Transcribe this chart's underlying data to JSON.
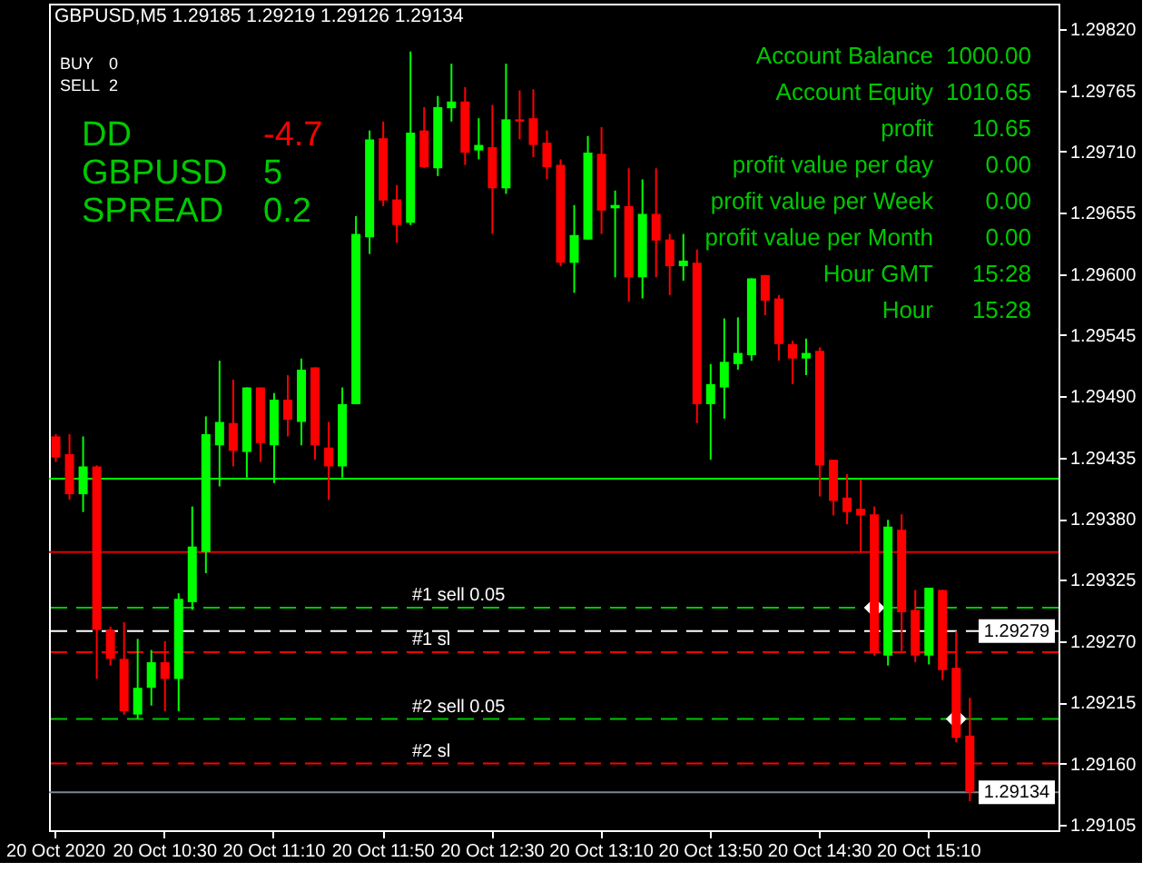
{
  "chart_data": {
    "type": "candlestick",
    "title": "GBPUSD,M5 1.29185 1.29219 1.29126 1.29134",
    "categories": [
      "20 Oct 2020",
      null,
      null,
      null,
      null,
      null,
      null,
      null,
      "20 Oct 10:30",
      null,
      null,
      null,
      null,
      null,
      null,
      null,
      "20 Oct 11:10",
      null,
      null,
      null,
      null,
      null,
      null,
      null,
      "20 Oct 11:50",
      null,
      null,
      null,
      null,
      null,
      null,
      null,
      "20 Oct 12:30",
      null,
      null,
      null,
      null,
      null,
      null,
      null,
      "20 Oct 13:10",
      null,
      null,
      null,
      null,
      null,
      null,
      null,
      "20 Oct 13:50",
      null,
      null,
      null,
      null,
      null,
      null,
      null,
      "20 Oct 14:30",
      null,
      null,
      null,
      null,
      null,
      null,
      null,
      "20 Oct 15:10",
      null,
      null,
      null,
      null,
      null,
      null,
      null,
      null,
      null
    ],
    "ohlc": [
      [
        1.29454,
        1.29456,
        1.29431,
        1.29435
      ],
      [
        1.29438,
        1.29456,
        1.29397,
        1.29402
      ],
      [
        1.29402,
        1.29454,
        1.29386,
        1.29427
      ],
      [
        1.29427,
        1.29428,
        1.29236,
        1.2928
      ],
      [
        1.2928,
        1.29283,
        1.29248,
        1.29254
      ],
      [
        1.29254,
        1.29287,
        1.29204,
        1.29207
      ],
      [
        1.29204,
        1.29272,
        1.292,
        1.29228
      ],
      [
        1.29228,
        1.29262,
        1.29212,
        1.29251
      ],
      [
        1.29251,
        1.2927,
        1.29207,
        1.29236
      ],
      [
        1.29236,
        1.29313,
        1.29207,
        1.29308
      ],
      [
        1.29305,
        1.29391,
        1.29298,
        1.29355
      ],
      [
        1.2935,
        1.29472,
        1.29331,
        1.29456
      ],
      [
        1.29446,
        1.29522,
        1.29409,
        1.29467
      ],
      [
        1.29466,
        1.29505,
        1.29427,
        1.29441
      ],
      [
        1.2944,
        1.29498,
        1.29417,
        1.29498
      ],
      [
        1.29498,
        1.29498,
        1.29431,
        1.29448
      ],
      [
        1.29446,
        1.29493,
        1.29412,
        1.29487
      ],
      [
        1.29487,
        1.29509,
        1.29454,
        1.29469
      ],
      [
        1.29467,
        1.29524,
        1.29446,
        1.29514
      ],
      [
        1.29516,
        1.29516,
        1.29433,
        1.29446
      ],
      [
        1.29444,
        1.29467,
        1.29397,
        1.29427
      ],
      [
        1.29427,
        1.29498,
        1.29417,
        1.29483
      ],
      [
        1.29483,
        1.29652,
        1.29483,
        1.29636
      ],
      [
        1.29633,
        1.29729,
        1.29618,
        1.29721
      ],
      [
        1.29722,
        1.29737,
        1.29661,
        1.29666
      ],
      [
        1.29667,
        1.2968,
        1.29628,
        1.29644
      ],
      [
        1.29646,
        1.298,
        1.29644,
        1.29727
      ],
      [
        1.29729,
        1.2975,
        1.29695,
        1.29696
      ],
      [
        1.29695,
        1.2976,
        1.29688,
        1.2975
      ],
      [
        1.29749,
        1.29789,
        1.29737,
        1.29755
      ],
      [
        1.29755,
        1.29768,
        1.29698,
        1.29709
      ],
      [
        1.29711,
        1.2974,
        1.29703,
        1.29716
      ],
      [
        1.29714,
        1.29752,
        1.29636,
        1.29677
      ],
      [
        1.29677,
        1.29789,
        1.29672,
        1.29739
      ],
      [
        1.29739,
        1.29765,
        1.29721,
        1.29737
      ],
      [
        1.2974,
        1.29766,
        1.29705,
        1.29716
      ],
      [
        1.29718,
        1.29729,
        1.29685,
        1.29696
      ],
      [
        1.29698,
        1.29703,
        1.29607,
        1.2961
      ],
      [
        1.2961,
        1.29662,
        1.29583,
        1.29635
      ],
      [
        1.29631,
        1.29724,
        1.29631,
        1.29709
      ],
      [
        1.29708,
        1.29732,
        1.29636,
        1.29657
      ],
      [
        1.29659,
        1.29675,
        1.29597,
        1.29662
      ],
      [
        1.29661,
        1.29695,
        1.29575,
        1.29597
      ],
      [
        1.29597,
        1.29685,
        1.29578,
        1.29654
      ],
      [
        1.29654,
        1.29695,
        1.29597,
        1.2963
      ],
      [
        1.29631,
        1.29636,
        1.29581,
        1.29607
      ],
      [
        1.29607,
        1.29636,
        1.29594,
        1.29612
      ],
      [
        1.2961,
        1.29622,
        1.29466,
        1.29483
      ],
      [
        1.29483,
        1.29519,
        1.29433,
        1.29501
      ],
      [
        1.29498,
        1.2956,
        1.2947,
        1.29521
      ],
      [
        1.29519,
        1.29561,
        1.29514,
        1.29529
      ],
      [
        1.29527,
        1.29596,
        1.29522,
        1.29596
      ],
      [
        1.29599,
        1.29599,
        1.29563,
        1.29576
      ],
      [
        1.29578,
        1.29581,
        1.29522,
        1.29537
      ],
      [
        1.29537,
        1.2954,
        1.29501,
        1.29524
      ],
      [
        1.29524,
        1.29542,
        1.29509,
        1.29529
      ],
      [
        1.29531,
        1.29534,
        1.294,
        1.29428
      ],
      [
        1.29433,
        1.29433,
        1.29383,
        1.29396
      ],
      [
        1.29399,
        1.2942,
        1.29375,
        1.29386
      ],
      [
        1.29389,
        1.29415,
        1.2935,
        1.29383
      ],
      [
        1.29384,
        1.29391,
        1.29257,
        1.29259
      ],
      [
        1.29257,
        1.29379,
        1.29248,
        1.29373
      ],
      [
        1.2937,
        1.29384,
        1.29261,
        1.29296
      ],
      [
        1.29298,
        1.29316,
        1.29251,
        1.29257
      ],
      [
        1.29257,
        1.29318,
        1.29249,
        1.29318
      ],
      [
        1.29316,
        1.29316,
        1.29235,
        1.29244
      ],
      [
        1.29246,
        1.29279,
        1.29179,
        1.29183
      ],
      [
        1.29185,
        1.29219,
        1.29126,
        1.29134
      ],
      null,
      null,
      null,
      null,
      null,
      null
    ],
    "colors": [
      "#ff0000",
      "#ff0000",
      "#00ff00",
      "#ff0000",
      "#ff0000",
      "#ff0000",
      "#00ff00",
      "#00ff00",
      "#ff0000",
      "#00ff00",
      "#00ff00",
      "#00ff00",
      "#00ff00",
      "#ff0000",
      "#00ff00",
      "#ff0000",
      "#00ff00",
      "#ff0000",
      "#00ff00",
      "#ff0000",
      "#ff0000",
      "#00ff00",
      "#00ff00",
      "#00ff00",
      "#ff0000",
      "#ff0000",
      "#00ff00",
      "#ff0000",
      "#00ff00",
      "#00ff00",
      "#ff0000",
      "#00ff00",
      "#ff0000",
      "#00ff00",
      "#ff0000",
      "#ff0000",
      "#ff0000",
      "#ff0000",
      "#00ff00",
      "#00ff00",
      "#ff0000",
      "#00ff00",
      "#ff0000",
      "#00ff00",
      "#ff0000",
      "#ff0000",
      "#00ff00",
      "#ff0000",
      "#00ff00",
      "#00ff00",
      "#00ff00",
      "#00ff00",
      "#ff0000",
      "#ff0000",
      "#ff0000",
      "#00ff00",
      "#ff0000",
      "#ff0000",
      "#ff0000",
      "#ff0000",
      "#ff0000",
      "#00ff00",
      "#ff0000",
      "#ff0000",
      "#00ff00",
      "#ff0000",
      "#ff0000",
      "#ff0000",
      null,
      null,
      null,
      null,
      null,
      null
    ],
    "series": [
      {
        "type": "scatter",
        "values": [
          null,
          null,
          null,
          null,
          null,
          null,
          null,
          null,
          null,
          null,
          null,
          null,
          null,
          null,
          null,
          null,
          null,
          null,
          null,
          null,
          null,
          null,
          null,
          null,
          null,
          null,
          null,
          null,
          null,
          null,
          null,
          null,
          null,
          null,
          null,
          null,
          null,
          null,
          null,
          null,
          null,
          null,
          null,
          null,
          null,
          null,
          null,
          null,
          null,
          null,
          null,
          null,
          null,
          null,
          null,
          null,
          null,
          null,
          null,
          null,
          1.293,
          null,
          null,
          null,
          null,
          null,
          1.292,
          null,
          null,
          null,
          null,
          null,
          null,
          null
        ],
        "color": "#ffffff",
        "marker": "diamond"
      }
    ],
    "ylim": [
      1.291,
      1.29843
    ],
    "yticks": [
      1.29105,
      {
        "value": 1.2916,
        "label": "1.29160"
      },
      1.29215,
      {
        "value": 1.2927,
        "label": "1.29270"
      },
      1.29325,
      {
        "value": 1.2938,
        "label": "1.29380"
      },
      1.29435,
      {
        "value": 1.2949,
        "label": "1.29490"
      },
      1.29545,
      {
        "value": 1.296,
        "label": "1.29600"
      },
      1.29655,
      {
        "value": 1.2971,
        "label": "1.29710"
      },
      1.29765,
      {
        "value": 1.2982,
        "label": "1.29820"
      }
    ],
    "ref_lines": [
      {
        "axis": "y",
        "value": 1.29416,
        "color": "#00ff00",
        "line_style": "solid"
      },
      {
        "axis": "y",
        "value": 1.2935,
        "color": "#e00000",
        "line_style": "solid"
      },
      {
        "axis": "y",
        "value": 1.293,
        "label": "#1 sell 0.05",
        "color": "#00c800",
        "line_style": "dashed"
      },
      {
        "axis": "y",
        "value": 1.29279,
        "color": "#ffffff",
        "line_style": "dashed"
      },
      {
        "axis": "y",
        "value": 1.2926,
        "label": "#1 sl",
        "color": "#ff0000",
        "line_style": "dashed"
      },
      {
        "axis": "y",
        "value": 1.292,
        "label": "#2 sell 0.05",
        "color": "#00c800",
        "line_style": "dashed"
      },
      {
        "axis": "y",
        "value": 1.2916,
        "label": "#2 sl",
        "color": "#ff0000",
        "line_style": "dashed"
      },
      {
        "axis": "y",
        "value": 1.29134,
        "color": "#778899",
        "line_style": "solid"
      }
    ],
    "annotations": [
      "BUY",
      "0",
      "SELL",
      "2",
      "Account Balance",
      "1000.00",
      "Account Equity",
      "1010.65",
      "profit",
      "10.65",
      "profit value per day",
      "0.00",
      "profit value per Week",
      "0.00",
      "profit value per Month",
      "0.00",
      "Hour GMT",
      "15:28",
      "Hour",
      "15:28",
      "DD",
      "-4.7",
      "GBPUSD",
      "5",
      "SPREAD",
      "0.2",
      {
        "text": "1.29279",
        "y": 1.29279
      },
      {
        "text": "1.29134",
        "y": 1.29134
      }
    ]
  }
}
